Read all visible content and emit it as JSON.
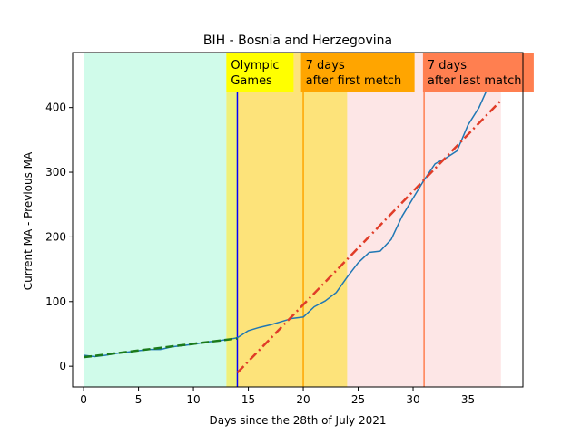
{
  "chart_data": {
    "type": "line",
    "title": "BIH - Bosnia and Herzegovina",
    "xlabel": "Days since the 28th of July 2021",
    "ylabel": "Current MA - Previous MA",
    "xlim": [
      -1,
      40
    ],
    "ylim": [
      -32,
      485
    ],
    "xticks": [
      0,
      5,
      10,
      15,
      20,
      25,
      30,
      35
    ],
    "yticks": [
      0,
      100,
      200,
      300,
      400
    ],
    "grid": false,
    "colors": {
      "main_line": "#1f77b4",
      "early_fit": "#1a7a1a",
      "late_fit": "#e03c28",
      "band_1": "#d0fbea",
      "band_2": "#eef07a",
      "band_3": "#fde37a",
      "band_4": "#fde6e6",
      "line_olympic": "#0000ff",
      "line_first": "#ffa500",
      "line_last": "#ff7f50",
      "label_olympic": "#ffff00",
      "label_first": "#ffa500",
      "label_last": "#ff7f50"
    },
    "bands": [
      {
        "from": 0,
        "to": 13,
        "color": "#d0fbea"
      },
      {
        "from": 13,
        "to": 14,
        "color": "#eef07a"
      },
      {
        "from": 14,
        "to": 24,
        "color": "#fde37a"
      },
      {
        "from": 24,
        "to": 38,
        "color": "#fde6e6"
      }
    ],
    "vlines": [
      {
        "x": 14,
        "color": "#0000ff"
      },
      {
        "x": 20,
        "color": "#ffa500"
      },
      {
        "x": 31,
        "color": "#ff7f50"
      }
    ],
    "annotations": [
      {
        "x": 13,
        "lines": [
          "Olympic",
          "Games"
        ],
        "bg": "#ffff00",
        "width": 74
      },
      {
        "x": 19.8,
        "lines": [
          "7 days",
          "after first metch"
        ],
        "bg": "#ffa500",
        "width": 125
      },
      {
        "x": 30.9,
        "lines": [
          "7 days",
          "after last match"
        ],
        "bg": "#ff7f50",
        "width": 122
      }
    ],
    "series": [
      {
        "style": "solid",
        "x": [
          0,
          1,
          2,
          3,
          4,
          5,
          6,
          7,
          8,
          9,
          10,
          11,
          12,
          13,
          14,
          15,
          16,
          17,
          18,
          19,
          20,
          21,
          22,
          23,
          24,
          25,
          26,
          27,
          28,
          29,
          30,
          31,
          32,
          33,
          34,
          35,
          36,
          37,
          38
        ],
        "y": [
          17,
          15,
          17,
          20,
          22,
          24,
          26,
          26,
          30,
          32,
          34,
          37,
          39,
          41,
          44,
          55,
          60,
          64,
          69,
          74,
          76,
          92,
          101,
          114,
          138,
          160,
          176,
          178,
          196,
          232,
          260,
          288,
          313,
          322,
          333,
          373,
          400,
          438,
          470
        ]
      },
      {
        "style": "dashed",
        "x": [
          0,
          14
        ],
        "y": [
          14,
          43
        ]
      },
      {
        "style": "dashdot",
        "x": [
          14,
          38
        ],
        "y": [
          -10,
          411
        ]
      }
    ]
  }
}
